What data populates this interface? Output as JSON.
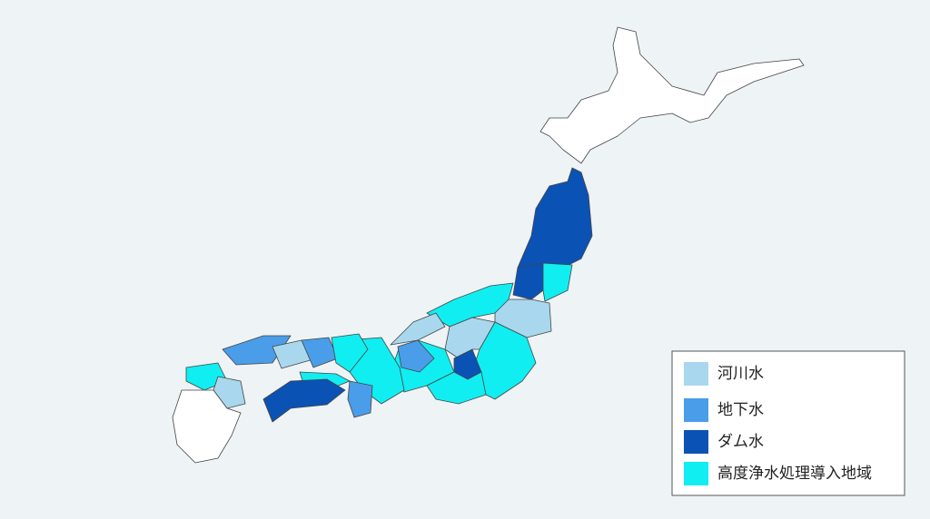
{
  "legend": {
    "items": [
      {
        "label": "河川水",
        "color": "#a9d8ee"
      },
      {
        "label": "地下水",
        "color": "#4a9de8"
      },
      {
        "label": "ダム水",
        "color": "#0b52b5"
      },
      {
        "label": "高度浄水処理導入地域",
        "color": "#10eef2"
      }
    ]
  }
}
